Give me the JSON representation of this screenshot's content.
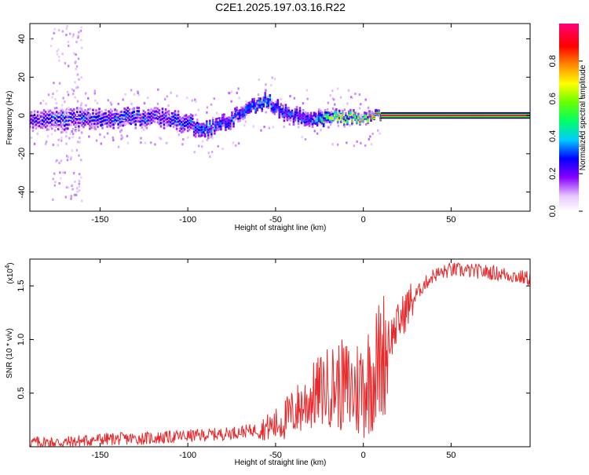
{
  "title": "C2E1.2025.197.03.16.R22",
  "top_panel": {
    "xlabel": "Height of straight line (km)",
    "ylabel": "Frequency (Hz)",
    "xticks": [
      -150,
      -100,
      -50,
      0,
      50
    ],
    "yticks": [
      40,
      20,
      0,
      -20,
      -40
    ]
  },
  "colorbar": {
    "label": "Normalized spectral amplitude",
    "ticks": [
      "0.0",
      "0.2",
      "0.4",
      "0.6",
      "0.8"
    ]
  },
  "bottom_panel": {
    "xlabel": "Height of straight line (km)",
    "ylabel": "SNR (10 * v/v)",
    "multiplier": "(x10",
    "multiplier_exp": "4",
    "multiplier_close": ")",
    "xticks": [
      -150,
      -100,
      -50,
      0,
      50
    ],
    "yticks": [
      "0.5",
      "1.0",
      "1.5"
    ]
  },
  "chart_data": [
    {
      "type": "heatmap",
      "title": "C2E1.2025.197.03.16.R22",
      "xlabel": "Height of straight line (km)",
      "ylabel": "Frequency (Hz)",
      "xlim": [
        -190,
        95
      ],
      "ylim": [
        -50,
        48
      ],
      "colorbar_label": "Normalized spectral amplitude",
      "colorbar_range": [
        0,
        1
      ],
      "ridge": [
        {
          "x": -190,
          "y": -3,
          "spread": 5,
          "amp": 0.25
        },
        {
          "x": -175,
          "y": -2,
          "spread": 6,
          "amp": 0.3
        },
        {
          "x": -150,
          "y": -2,
          "spread": 5,
          "amp": 0.3
        },
        {
          "x": -120,
          "y": -1,
          "spread": 5,
          "amp": 0.3
        },
        {
          "x": -100,
          "y": -4,
          "spread": 5,
          "amp": 0.3
        },
        {
          "x": -90,
          "y": -8,
          "spread": 4,
          "amp": 0.35
        },
        {
          "x": -75,
          "y": -2,
          "spread": 4,
          "amp": 0.3
        },
        {
          "x": -55,
          "y": 8,
          "spread": 3,
          "amp": 0.4
        },
        {
          "x": -45,
          "y": 1,
          "spread": 4,
          "amp": 0.3
        },
        {
          "x": -30,
          "y": -2,
          "spread": 4,
          "amp": 0.3
        },
        {
          "x": -15,
          "y": -1,
          "spread": 2,
          "amp": 0.75
        },
        {
          "x": 0,
          "y": -1,
          "spread": 1.5,
          "amp": 0.8
        },
        {
          "x": 10,
          "y": 0,
          "spread": 1,
          "amp": 0.95
        },
        {
          "x": 95,
          "y": 0,
          "spread": 1,
          "amp": 0.97
        }
      ]
    },
    {
      "type": "line",
      "xlabel": "Height of straight line (km)",
      "ylabel": "SNR (10 * v/v)",
      "xlim": [
        -190,
        95
      ],
      "ylim": [
        0,
        1.75
      ],
      "y_multiplier": "x10^4",
      "series": [
        {
          "x": [
            -190,
            -170,
            -150,
            -120,
            -100,
            -80,
            -70,
            -60,
            -50,
            -45,
            -40,
            -35,
            -30,
            -25,
            -20,
            -15,
            -10,
            -5,
            0,
            5,
            10,
            15,
            20,
            25,
            30,
            35,
            40,
            50,
            60,
            70,
            80,
            90,
            95
          ],
          "y": [
            0.04,
            0.04,
            0.07,
            0.08,
            0.1,
            0.12,
            0.14,
            0.16,
            0.2,
            0.25,
            0.32,
            0.38,
            0.45,
            0.52,
            0.56,
            0.58,
            0.55,
            0.52,
            0.58,
            0.68,
            0.82,
            1.0,
            1.15,
            1.3,
            1.42,
            1.52,
            1.6,
            1.65,
            1.64,
            1.63,
            1.61,
            1.58,
            1.57
          ],
          "color": "#e8282a"
        }
      ]
    }
  ]
}
